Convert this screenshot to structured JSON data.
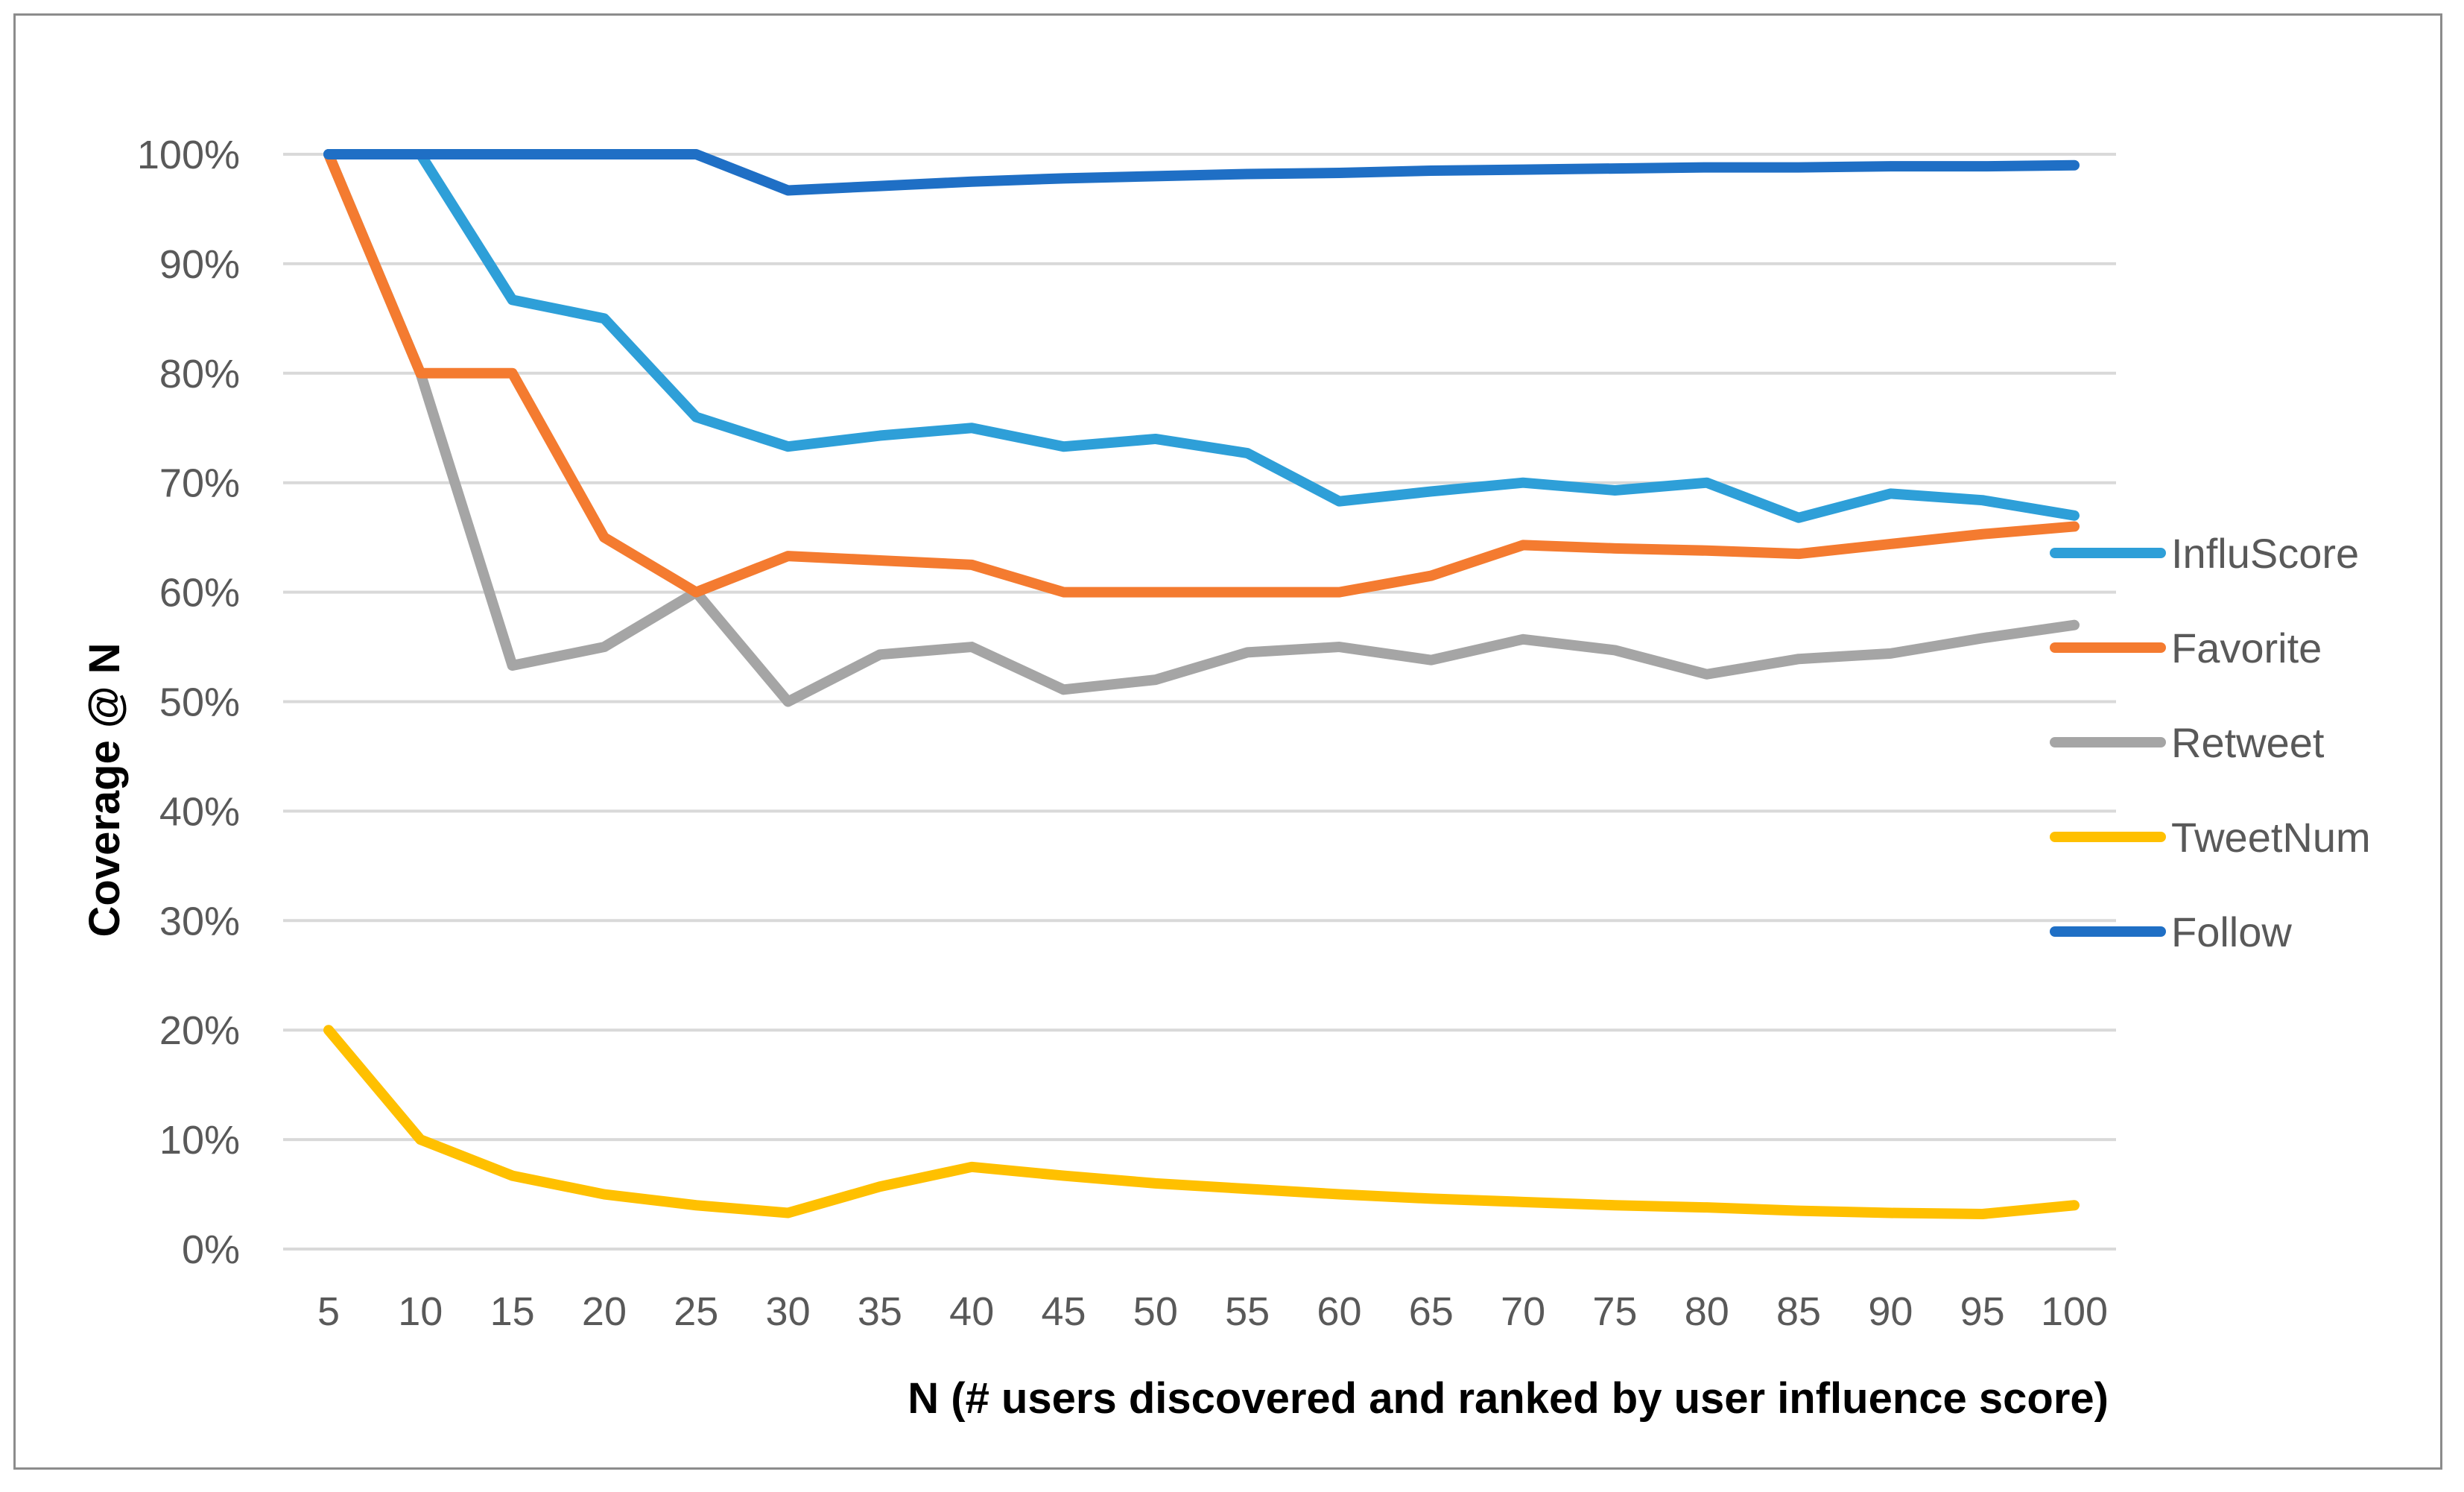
{
  "chart_data": {
    "type": "line",
    "title": "",
    "xlabel": "N (# users discovered and ranked by user influence score)",
    "ylabel": "Coverage @ N",
    "categories": [
      "5",
      "10",
      "15",
      "20",
      "25",
      "30",
      "35",
      "40",
      "45",
      "50",
      "55",
      "60",
      "65",
      "70",
      "75",
      "80",
      "85",
      "90",
      "95",
      "100"
    ],
    "ylim": [
      0,
      100
    ],
    "yticks": [
      0,
      10,
      20,
      30,
      40,
      50,
      60,
      70,
      80,
      90,
      100
    ],
    "ytick_labels": [
      "0%",
      "10%",
      "20%",
      "30%",
      "40%",
      "50%",
      "60%",
      "70%",
      "80%",
      "90%",
      "100%"
    ],
    "grid": true,
    "legend_position": "right",
    "series": [
      {
        "name": "InfluScore",
        "color": "#2e9fd8",
        "values": [
          100,
          100,
          86.7,
          85,
          76,
          73.3,
          74.3,
          75,
          73.3,
          74,
          72.7,
          68.3,
          69.2,
          70,
          69.3,
          70,
          66.8,
          69,
          68.4,
          67
        ]
      },
      {
        "name": "Favorite",
        "color": "#f47b30",
        "values": [
          100,
          80,
          80,
          65,
          60,
          63.3,
          62.9,
          62.5,
          60,
          60,
          60,
          60,
          61.5,
          64.3,
          64,
          63.8,
          63.5,
          64.4,
          65.3,
          66
        ]
      },
      {
        "name": "Retweet",
        "color": "#a5a5a5",
        "values": [
          100,
          80,
          53.3,
          55,
          60,
          50,
          54.3,
          55,
          51.1,
          52,
          54.5,
          55,
          53.8,
          55.7,
          54.7,
          52.5,
          53.9,
          54.4,
          55.8,
          57
        ]
      },
      {
        "name": "TweetNum",
        "color": "#ffc000",
        "values": [
          20,
          10,
          6.7,
          5,
          4,
          3.3,
          5.7,
          7.5,
          6.7,
          6,
          5.5,
          5,
          4.6,
          4.3,
          4,
          3.8,
          3.5,
          3.3,
          3.2,
          4
        ]
      },
      {
        "name": "Follow",
        "color": "#1f6fc5",
        "values": [
          100,
          100,
          100,
          100,
          100,
          96.7,
          97.1,
          97.5,
          97.8,
          98,
          98.2,
          98.3,
          98.5,
          98.6,
          98.7,
          98.8,
          98.8,
          98.9,
          98.9,
          99
        ]
      }
    ]
  }
}
